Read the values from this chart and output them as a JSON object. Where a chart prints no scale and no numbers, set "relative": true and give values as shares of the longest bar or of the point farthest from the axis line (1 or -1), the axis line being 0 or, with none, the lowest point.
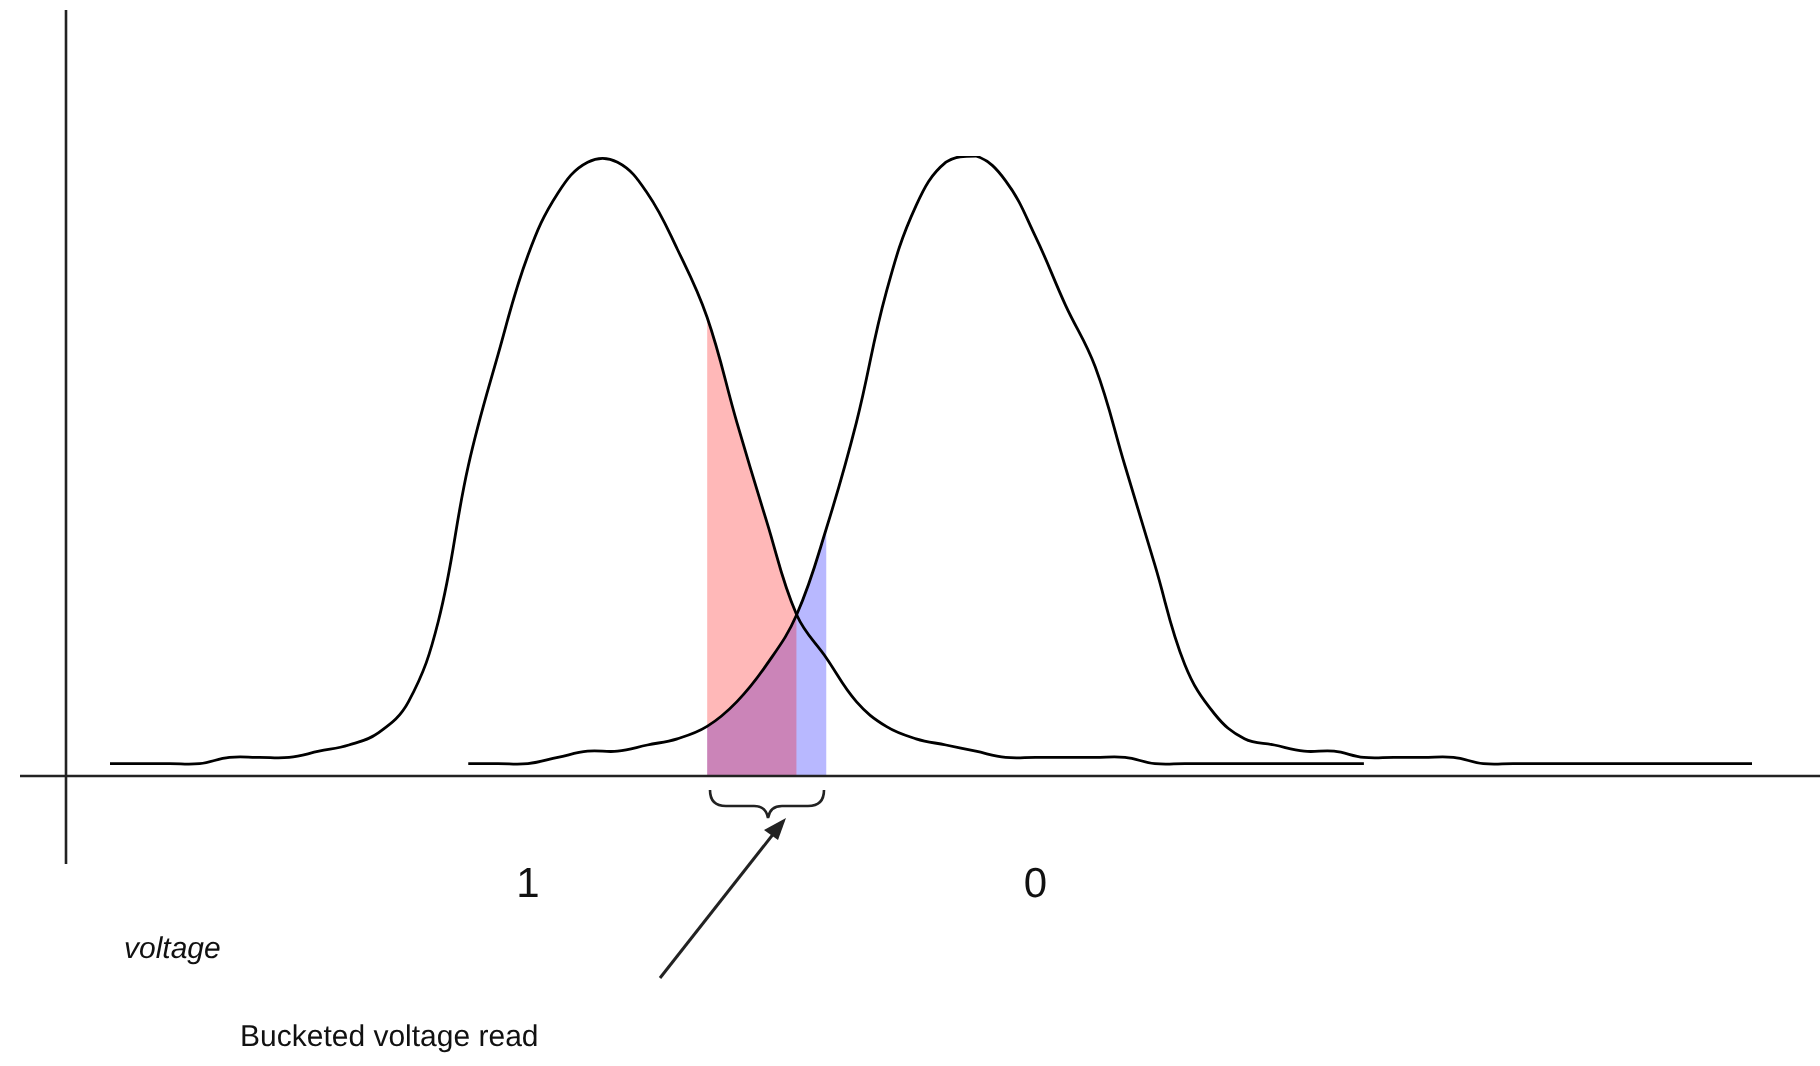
{
  "chart_data": {
    "type": "line",
    "xlabel": "voltage",
    "relative": true,
    "marker": "none",
    "legend": false,
    "line_style": "solid",
    "categories": [
      null,
      null,
      null,
      null,
      null,
      null,
      null,
      null,
      null,
      null,
      null,
      null,
      null,
      null,
      "1",
      null,
      null,
      null,
      null,
      null,
      null,
      null,
      null,
      null,
      null,
      null,
      null,
      null,
      null,
      null,
      null,
      "0",
      null,
      null,
      null,
      null,
      null,
      null,
      null,
      null,
      null,
      null,
      null,
      null,
      null,
      null,
      null,
      null,
      null,
      null,
      null,
      null,
      null,
      null,
      null,
      null
    ],
    "series": [
      {
        "color": "#000000",
        "values": [
          0.02,
          0.02,
          0.02,
          0.02,
          0.03,
          0.03,
          0.03,
          0.04,
          0.05,
          0.07,
          0.12,
          0.25,
          0.5,
          0.68,
          0.84,
          0.94,
          0.99,
          0.99,
          0.94,
          0.85,
          0.74,
          0.57,
          0.41,
          0.26,
          0.19,
          0.12,
          0.08,
          0.06,
          0.05,
          0.04,
          0.03,
          0.03,
          0.03,
          0.03,
          0.03,
          0.02,
          0.02,
          0.02,
          0.02,
          0.02,
          0.02,
          0.02,
          0.02,
          null,
          null,
          null,
          null,
          null,
          null,
          null,
          null,
          null,
          null,
          null,
          null,
          null
        ]
      },
      {
        "color": "#000000",
        "values": [
          null,
          null,
          null,
          null,
          null,
          null,
          null,
          null,
          null,
          null,
          null,
          null,
          0.02,
          0.02,
          0.02,
          0.03,
          0.04,
          0.04,
          0.05,
          0.06,
          0.08,
          0.12,
          0.18,
          0.26,
          0.4,
          0.57,
          0.78,
          0.92,
          0.99,
          1,
          0.96,
          0.87,
          0.76,
          0.66,
          0.5,
          0.34,
          0.18,
          0.1,
          0.06,
          0.05,
          0.04,
          0.04,
          0.03,
          0.03,
          0.03,
          0.03,
          0.02,
          0.02,
          0.02,
          0.02,
          0.02,
          0.02,
          0.02,
          0.02,
          0.02,
          0.02
        ]
      },
      {
        "type": "area",
        "color": "#0000ff",
        "values": [
          null,
          null,
          null,
          null,
          null,
          null,
          null,
          null,
          null,
          null,
          null,
          null,
          null,
          null,
          null,
          null,
          null,
          null,
          null,
          null,
          0.08,
          0.12,
          0.18,
          0.26,
          0.4,
          null,
          null,
          null,
          null,
          null,
          null,
          null,
          null,
          null,
          null,
          null,
          null,
          null,
          null,
          null,
          null,
          null,
          null,
          null,
          null,
          null,
          null,
          null,
          null,
          null,
          null,
          null,
          null,
          null,
          null,
          null
        ]
      },
      {
        "type": "area",
        "color": "#ff0000",
        "values": [
          null,
          null,
          null,
          null,
          null,
          null,
          null,
          null,
          null,
          null,
          null,
          null,
          null,
          null,
          null,
          null,
          null,
          null,
          null,
          null,
          0.74,
          0.57,
          0.41,
          0.26,
          null,
          null,
          null,
          null,
          null,
          null,
          null,
          null,
          null,
          null,
          null,
          null,
          null,
          null,
          null,
          null,
          null,
          null,
          null,
          null,
          null,
          null,
          null,
          null,
          null,
          null,
          null,
          null,
          null,
          null,
          null,
          null
        ]
      }
    ],
    "annotations": [
      "Bucketed voltage read"
    ]
  }
}
